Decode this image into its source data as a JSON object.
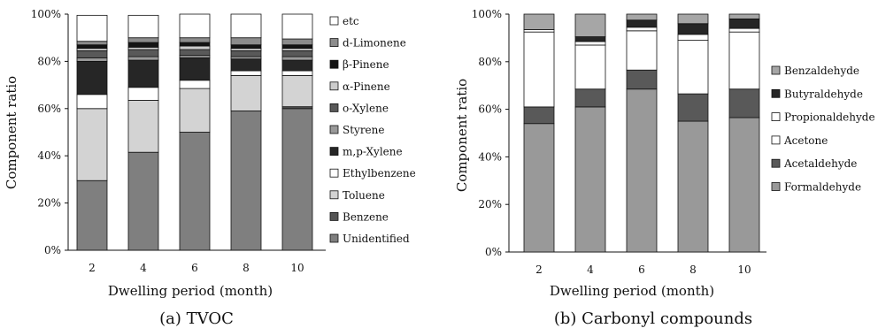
{
  "chart_data": [
    {
      "type": "bar",
      "stacked": "percent",
      "caption": "(a)  TVOC",
      "xlabel": "Dwelling period (month)",
      "ylabel": "Component ratio",
      "categories": [
        "2",
        "4",
        "6",
        "8",
        "10"
      ],
      "yticks": [
        "0%",
        "20%",
        "40%",
        "60%",
        "80%",
        "100%"
      ],
      "ylim": [
        0,
        100
      ],
      "grid": false,
      "legend_placement": "right",
      "series": [
        {
          "name": "Unidentified",
          "color": "#7f7f7f",
          "values": [
            29.5,
            41.5,
            50,
            59,
            60
          ]
        },
        {
          "name": "Benzene",
          "color": "#555555",
          "values": [
            0,
            0,
            0,
            0,
            0.8
          ]
        },
        {
          "name": "Toluene",
          "color": "#d3d3d3",
          "values": [
            30.5,
            22,
            18.5,
            15,
            13.2
          ]
        },
        {
          "name": "Ethylbenzene",
          "color": "#ffffff",
          "values": [
            6,
            5.5,
            3.5,
            2,
            2
          ]
        },
        {
          "name": "m,p-Xylene",
          "color": "#262626",
          "values": [
            14,
            11.5,
            9.5,
            5,
            4.5
          ]
        },
        {
          "name": "Styrene",
          "color": "#999999",
          "values": [
            1.5,
            1.5,
            1,
            1,
            1.5
          ]
        },
        {
          "name": "o-Xylene",
          "color": "#595959",
          "values": [
            3,
            3,
            2.5,
            2.5,
            2.5
          ]
        },
        {
          "name": "α-Pinene",
          "color": "#cccccc",
          "values": [
            1,
            1,
            1.5,
            1,
            1
          ]
        },
        {
          "name": "β-Pinene",
          "color": "#141414",
          "values": [
            1.5,
            2,
            1.5,
            1.5,
            1.5
          ]
        },
        {
          "name": "d-Limonene",
          "color": "#8c8c8c",
          "values": [
            1.5,
            2,
            2,
            3,
            2.5
          ]
        },
        {
          "name": "etc",
          "color": "#ffffff",
          "values": [
            11,
            9.5,
            10,
            10,
            10.5
          ]
        }
      ]
    },
    {
      "type": "bar",
      "stacked": "percent",
      "caption": "(b)  Carbonyl compounds",
      "xlabel": "Dwelling period (month)",
      "ylabel": "Component ratio",
      "categories": [
        "2",
        "4",
        "6",
        "8",
        "10"
      ],
      "yticks": [
        "0%",
        "20%",
        "40%",
        "60%",
        "80%",
        "100%"
      ],
      "ylim": [
        0,
        100
      ],
      "grid": false,
      "legend_placement": "right",
      "series": [
        {
          "name": "Formaldehyde",
          "color": "#999999",
          "values": [
            54,
            61,
            68.5,
            55,
            56.5
          ]
        },
        {
          "name": "Acetaldehyde",
          "color": "#595959",
          "values": [
            7,
            7.5,
            8,
            11.5,
            12
          ]
        },
        {
          "name": "Acetone",
          "color": "#ffffff",
          "values": [
            31.5,
            18.5,
            16.5,
            22.5,
            24
          ]
        },
        {
          "name": "Propionaldehyde",
          "color": "#ffffff",
          "values": [
            1,
            1.5,
            1.5,
            2.5,
            1.5
          ]
        },
        {
          "name": "Butyraldehyde",
          "color": "#262626",
          "values": [
            0,
            2,
            3,
            4.5,
            4
          ]
        },
        {
          "name": "Benzaldehyde",
          "color": "#a6a6a6",
          "values": [
            6.5,
            9.5,
            2.5,
            4,
            2
          ]
        }
      ]
    }
  ]
}
